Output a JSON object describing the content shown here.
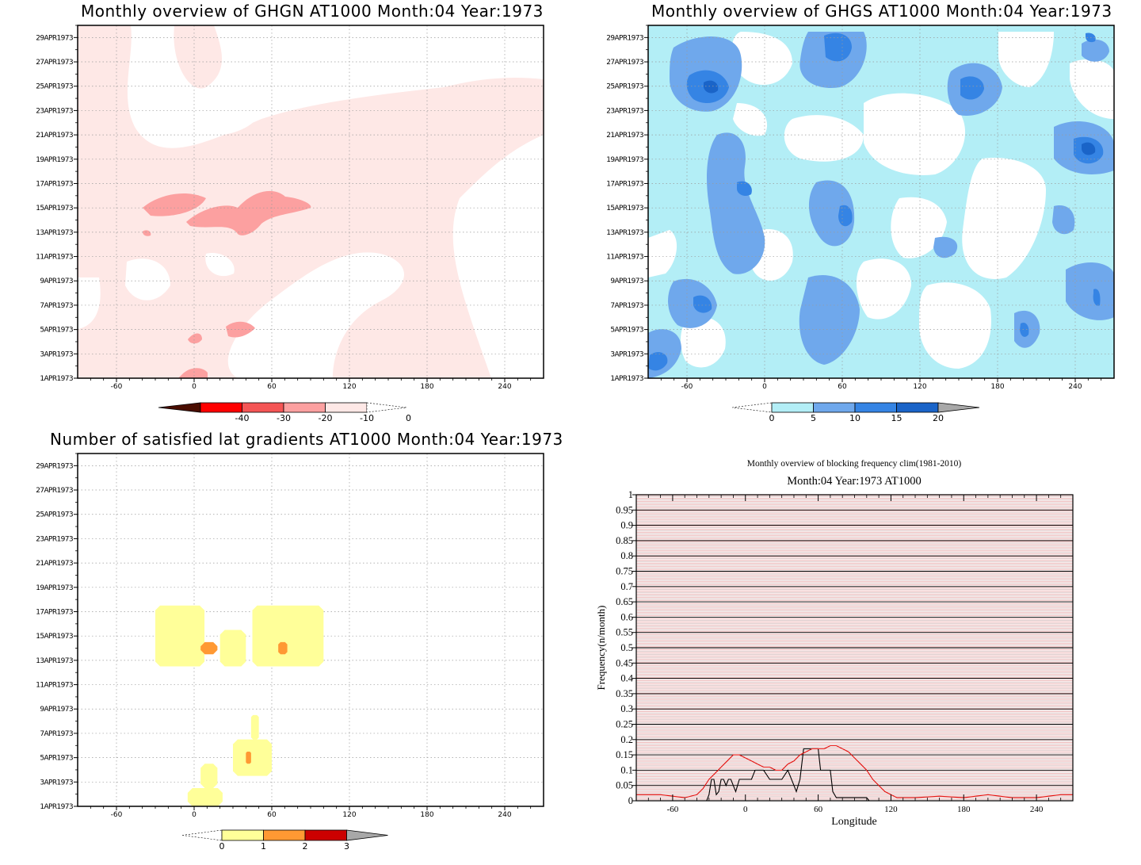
{
  "panels": {
    "ghgn": {
      "title": "Monthly overview of GHGN AT1000 Month:04 Year:1973",
      "cbar_labels": [
        "-40",
        "-30",
        "-20",
        "-10",
        "0"
      ],
      "cbar_colors": [
        "#4a0d00",
        "#ff0000",
        "#f45555",
        "#fca0a0",
        "#fee8e6",
        "#ffffff"
      ]
    },
    "ghgs": {
      "title": "Monthly overview of GHGS AT1000 Month:04 Year:1973",
      "cbar_labels": [
        "0",
        "5",
        "10",
        "15",
        "20"
      ],
      "cbar_colors": [
        "#ffffff",
        "#b3eef6",
        "#6fa8ec",
        "#3584e4",
        "#1a64c8",
        "#a8a8a8"
      ]
    },
    "lat": {
      "title": "Number of satisfied lat gradients AT1000 Month:04 Year:1973",
      "cbar_labels": [
        "0",
        "1",
        "2",
        "3"
      ],
      "cbar_colors": [
        "#ffffff",
        "#ffff99",
        "#ff9933",
        "#cc0000",
        "#a8a8a8"
      ]
    },
    "freq": {
      "suptitle": "Monthly overview of blocking frequency clim(1981-2010)",
      "title": "Month:04 Year:1973  AT1000",
      "xlabel": "Longitude",
      "ylabel": "Frequency(n/month)"
    }
  },
  "map_axes": {
    "xticks": [
      "-60",
      "0",
      "60",
      "120",
      "180",
      "240"
    ],
    "yticks": [
      "1APR1973",
      "3APR1973",
      "5APR1973",
      "7APR1973",
      "9APR1973",
      "11APR1973",
      "13APR1973",
      "15APR1973",
      "17APR1973",
      "19APR1973",
      "21APR1973",
      "23APR1973",
      "25APR1973",
      "27APR1973",
      "29APR1973"
    ]
  },
  "chart_data": [
    {
      "type": "heatmap",
      "title": "Monthly overview of GHGN AT1000 Month:04 Year:1973",
      "x_range": [
        -90,
        270
      ],
      "y_range": [
        "1APR1973",
        "30APR1973"
      ],
      "levels": [
        -40,
        -30,
        -20,
        -10,
        0
      ],
      "features": [
        {
          "level": -20,
          "lon": [
            -30,
            100
          ],
          "dates": [
            "14APR1973",
            "16APR1973"
          ]
        },
        {
          "level": -20,
          "lon": [
            5,
            60
          ],
          "dates": [
            "4APR1973",
            "5APR1973"
          ]
        }
      ]
    },
    {
      "type": "heatmap",
      "title": "Monthly overview of GHGS AT1000 Month:04 Year:1973",
      "x_range": [
        -90,
        270
      ],
      "y_range": [
        "1APR1973",
        "30APR1973"
      ],
      "levels": [
        0,
        5,
        10,
        15,
        20
      ]
    },
    {
      "type": "heatmap",
      "title": "Number of satisfied lat gradients AT1000 Month:04 Year:1973",
      "x_range": [
        -90,
        270
      ],
      "y_range": [
        "1APR1973",
        "30APR1973"
      ],
      "levels": [
        0,
        1,
        2,
        3
      ],
      "cells": [
        {
          "value": 1,
          "lon": [
            -30,
            8
          ],
          "dates": [
            "13APR1973",
            "17APR1973"
          ]
        },
        {
          "value": 1,
          "lon": [
            20,
            40
          ],
          "dates": [
            "13APR1973",
            "15APR1973"
          ]
        },
        {
          "value": 1,
          "lon": [
            45,
            100
          ],
          "dates": [
            "13APR1973",
            "17APR1973"
          ]
        },
        {
          "value": 2,
          "lon": [
            5,
            18
          ],
          "dates": [
            "14APR1973",
            "14APR1973"
          ]
        },
        {
          "value": 2,
          "lon": [
            65,
            72
          ],
          "dates": [
            "14APR1973",
            "14APR1973"
          ]
        },
        {
          "value": 1,
          "lon": [
            30,
            60
          ],
          "dates": [
            "4APR1973",
            "6APR1973"
          ]
        },
        {
          "value": 2,
          "lon": [
            40,
            44
          ],
          "dates": [
            "5APR1973",
            "5APR1973"
          ]
        },
        {
          "value": 1,
          "lon": [
            5,
            18
          ],
          "dates": [
            "3APR1973",
            "4APR1973"
          ]
        },
        {
          "value": 1,
          "lon": [
            -5,
            22
          ],
          "dates": [
            "1APR1973",
            "2APR1973"
          ]
        },
        {
          "value": 1,
          "lon": [
            44,
            50
          ],
          "dates": [
            "7APR1973",
            "8APR1973"
          ]
        }
      ]
    },
    {
      "type": "line",
      "title": "Month:04 Year:1973  AT1000",
      "suptitle": "Monthly overview of blocking frequency clim(1981-2010)",
      "xlabel": "Longitude",
      "ylabel": "Frequency(n/month)",
      "xlim": [
        -90,
        270
      ],
      "ylim": [
        0,
        1
      ],
      "xticks": [
        -60,
        0,
        60,
        120,
        180,
        240
      ],
      "yticks": [
        0,
        0.05,
        0.1,
        0.15,
        0.2,
        0.25,
        0.3,
        0.35,
        0.4,
        0.45,
        0.5,
        0.55,
        0.6,
        0.65,
        0.7,
        0.75,
        0.8,
        0.85,
        0.9,
        0.95,
        1
      ],
      "series": [
        {
          "color": "#000000",
          "x": [
            -90,
            -32,
            -30,
            -28,
            -26,
            -24,
            -22,
            -20,
            -18,
            -16,
            -14,
            -12,
            -10,
            -8,
            -5,
            0,
            5,
            8,
            10,
            15,
            20,
            25,
            30,
            35,
            40,
            42,
            45,
            48,
            50,
            55,
            60,
            62,
            65,
            70,
            72,
            75,
            90,
            95,
            100,
            102,
            105,
            270
          ],
          "y": [
            0,
            0,
            0.02,
            0.07,
            0.07,
            0.02,
            0.03,
            0.07,
            0.07,
            0.05,
            0.07,
            0.07,
            0.05,
            0.03,
            0.07,
            0.07,
            0.07,
            0.1,
            0.1,
            0.1,
            0.07,
            0.07,
            0.07,
            0.1,
            0.05,
            0.03,
            0.07,
            0.17,
            0.17,
            0.17,
            0.17,
            0.1,
            0.1,
            0.1,
            0.03,
            0.01,
            0.01,
            0.01,
            0.01,
            0,
            0,
            0
          ]
        },
        {
          "color": "#e4120f",
          "x": [
            -90,
            -70,
            -50,
            -40,
            -35,
            -30,
            -25,
            -20,
            -15,
            -10,
            -5,
            0,
            5,
            10,
            15,
            20,
            25,
            30,
            35,
            40,
            45,
            50,
            55,
            60,
            65,
            70,
            75,
            80,
            85,
            90,
            95,
            100,
            105,
            110,
            115,
            120,
            125,
            130,
            140,
            160,
            180,
            200,
            220,
            240,
            250,
            260,
            270
          ],
          "y": [
            0.02,
            0.02,
            0.01,
            0.02,
            0.04,
            0.07,
            0.09,
            0.11,
            0.13,
            0.15,
            0.15,
            0.14,
            0.13,
            0.12,
            0.11,
            0.11,
            0.1,
            0.1,
            0.12,
            0.13,
            0.15,
            0.16,
            0.17,
            0.17,
            0.17,
            0.18,
            0.18,
            0.17,
            0.16,
            0.14,
            0.12,
            0.1,
            0.07,
            0.05,
            0.03,
            0.02,
            0.01,
            0.01,
            0.01,
            0.015,
            0.01,
            0.02,
            0.01,
            0.01,
            0.015,
            0.02,
            0.02
          ]
        }
      ]
    }
  ]
}
